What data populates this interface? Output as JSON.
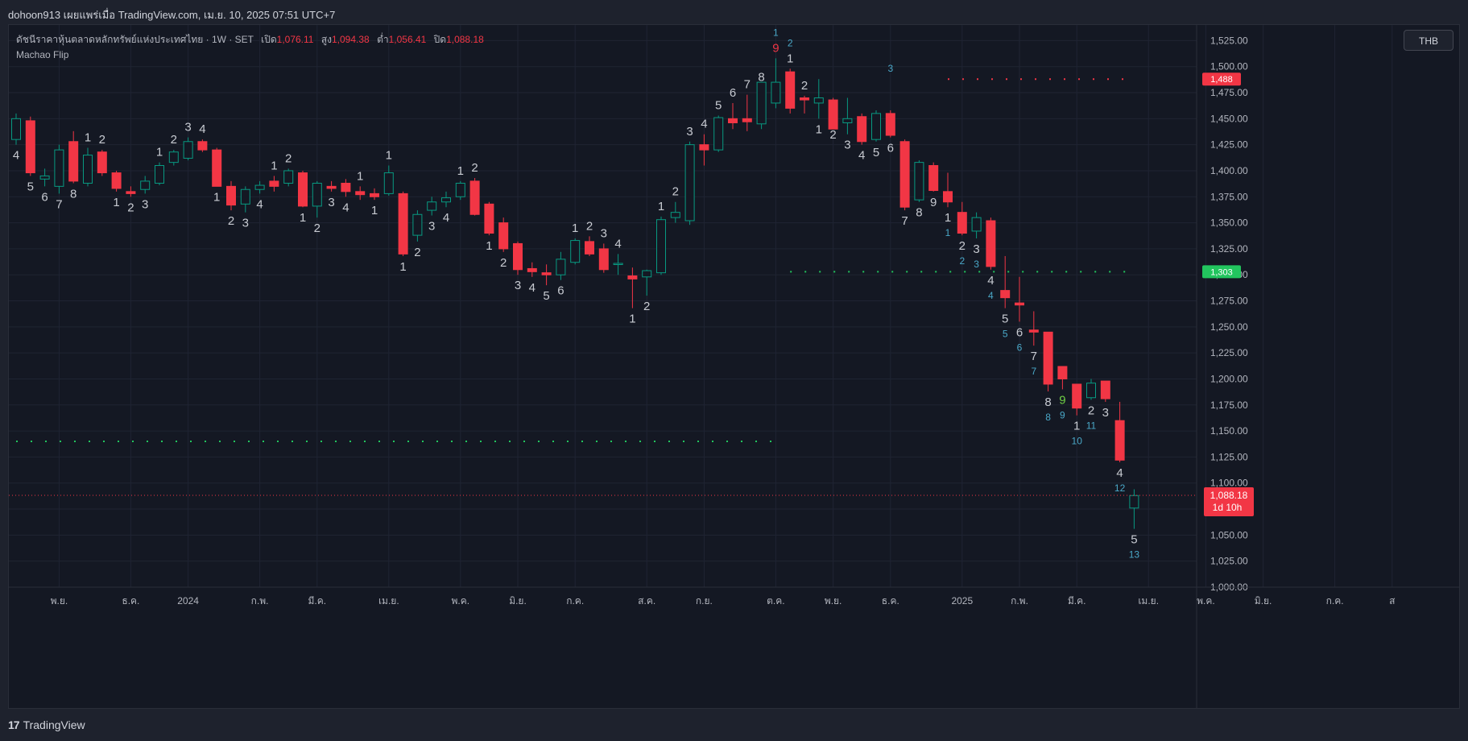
{
  "header": {
    "publisher_line": "dohoon913 เผยแพร่เมื่อ TradingView.com, เม.ย. 10, 2025 07:51 UTC+7"
  },
  "legend": {
    "symbol_desc": "ดัชนีราคาหุ้นตลาดหลักทรัพย์แห่งประเทศไทย · 1W · SET",
    "open_label": "เปิด",
    "open_value": "1,076.11",
    "high_label": "สูง",
    "high_value": "1,094.38",
    "low_label": "ต่ำ",
    "low_value": "1,056.41",
    "close_label": "ปิด",
    "close_value": "1,088.18"
  },
  "indicator": {
    "name": "Machao Flip"
  },
  "currency": "THB",
  "footer": {
    "brand": "TradingView"
  },
  "colors": {
    "up": "#089981",
    "down": "#f23645",
    "grid": "#1f2433",
    "text": "#b2b5be",
    "count_white": "#c8cbd2",
    "count_blue": "#4aa8c8",
    "count_red": "#f23645",
    "count_green": "#6fcf45"
  },
  "chart_data": {
    "type": "candlestick",
    "interval": "1W",
    "ylim": [
      1000,
      1540
    ],
    "y_ticks": [
      "1,525.00",
      "1,500.00",
      "1,475.00",
      "1,450.00",
      "1,425.00",
      "1,400.00",
      "1,375.00",
      "1,350.00",
      "1,325.00",
      "1,300.00",
      "1,275.00",
      "1,250.00",
      "1,225.00",
      "1,200.00",
      "1,175.00",
      "1,150.00",
      "1,125.00",
      "1,100.00",
      "1,075.00",
      "1,050.00",
      "1,025.00",
      "1,000.00"
    ],
    "x_labels": [
      {
        "i": 3,
        "label": "พ.ย."
      },
      {
        "i": 8,
        "label": "ธ.ค."
      },
      {
        "i": 12,
        "label": "2024"
      },
      {
        "i": 17,
        "label": "ก.พ."
      },
      {
        "i": 21,
        "label": "มี.ค."
      },
      {
        "i": 26,
        "label": "เม.ย."
      },
      {
        "i": 31,
        "label": "พ.ค."
      },
      {
        "i": 35,
        "label": "มิ.ย."
      },
      {
        "i": 39,
        "label": "ก.ค."
      },
      {
        "i": 44,
        "label": "ส.ค."
      },
      {
        "i": 48,
        "label": "ก.ย."
      },
      {
        "i": 53,
        "label": "ต.ค."
      },
      {
        "i": 57,
        "label": "พ.ย."
      },
      {
        "i": 61,
        "label": "ธ.ค."
      },
      {
        "i": 66,
        "label": "2025"
      },
      {
        "i": 70,
        "label": "ก.พ."
      },
      {
        "i": 74,
        "label": "มี.ค."
      },
      {
        "i": 79,
        "label": "เม.ย."
      },
      {
        "i": 83,
        "label": "พ.ค."
      },
      {
        "i": 87,
        "label": "มิ.ย."
      },
      {
        "i": 92,
        "label": "ก.ค."
      },
      {
        "i": 96,
        "label": "ส"
      }
    ],
    "candles": [
      [
        1430,
        1455,
        1425,
        1450
      ],
      [
        1448,
        1452,
        1395,
        1398
      ],
      [
        1392,
        1402,
        1385,
        1395
      ],
      [
        1385,
        1425,
        1378,
        1420
      ],
      [
        1428,
        1438,
        1388,
        1390
      ],
      [
        1388,
        1422,
        1385,
        1415
      ],
      [
        1418,
        1420,
        1395,
        1398
      ],
      [
        1398,
        1400,
        1380,
        1383
      ],
      [
        1380,
        1385,
        1375,
        1378
      ],
      [
        1382,
        1395,
        1378,
        1390
      ],
      [
        1388,
        1408,
        1386,
        1405
      ],
      [
        1408,
        1420,
        1405,
        1418
      ],
      [
        1412,
        1432,
        1410,
        1428
      ],
      [
        1428,
        1430,
        1418,
        1420
      ],
      [
        1420,
        1422,
        1385,
        1385
      ],
      [
        1385,
        1390,
        1362,
        1367
      ],
      [
        1368,
        1385,
        1360,
        1382
      ],
      [
        1382,
        1390,
        1378,
        1386
      ],
      [
        1390,
        1395,
        1380,
        1385
      ],
      [
        1388,
        1402,
        1385,
        1400
      ],
      [
        1398,
        1400,
        1365,
        1366
      ],
      [
        1366,
        1390,
        1355,
        1388
      ],
      [
        1385,
        1390,
        1380,
        1383
      ],
      [
        1388,
        1392,
        1375,
        1380
      ],
      [
        1380,
        1385,
        1372,
        1377
      ],
      [
        1378,
        1383,
        1372,
        1375
      ],
      [
        1378,
        1405,
        1376,
        1398
      ],
      [
        1378,
        1380,
        1318,
        1320
      ],
      [
        1338,
        1362,
        1332,
        1358
      ],
      [
        1362,
        1375,
        1357,
        1370
      ],
      [
        1370,
        1380,
        1365,
        1374
      ],
      [
        1375,
        1390,
        1372,
        1388
      ],
      [
        1390,
        1393,
        1357,
        1358
      ],
      [
        1368,
        1370,
        1338,
        1340
      ],
      [
        1350,
        1355,
        1322,
        1325
      ],
      [
        1330,
        1332,
        1300,
        1305
      ],
      [
        1306,
        1312,
        1298,
        1303
      ],
      [
        1302,
        1310,
        1290,
        1300
      ],
      [
        1300,
        1322,
        1295,
        1315
      ],
      [
        1312,
        1335,
        1310,
        1333
      ],
      [
        1332,
        1337,
        1318,
        1320
      ],
      [
        1325,
        1330,
        1302,
        1305
      ],
      [
        1310,
        1320,
        1300,
        1311
      ],
      [
        1299,
        1307,
        1268,
        1296
      ],
      [
        1298,
        1305,
        1280,
        1304
      ],
      [
        1302,
        1356,
        1300,
        1353
      ],
      [
        1355,
        1370,
        1350,
        1360
      ],
      [
        1352,
        1428,
        1348,
        1425
      ],
      [
        1425,
        1435,
        1405,
        1420
      ],
      [
        1420,
        1453,
        1418,
        1451
      ],
      [
        1450,
        1465,
        1440,
        1446
      ],
      [
        1450,
        1473,
        1438,
        1447
      ],
      [
        1445,
        1480,
        1440,
        1485
      ],
      [
        1465,
        1508,
        1460,
        1485
      ],
      [
        1495,
        1498,
        1455,
        1460
      ],
      [
        1470,
        1472,
        1455,
        1468
      ],
      [
        1465,
        1488,
        1450,
        1470
      ],
      [
        1468,
        1470,
        1445,
        1440
      ],
      [
        1446,
        1470,
        1435,
        1450
      ],
      [
        1452,
        1455,
        1425,
        1428
      ],
      [
        1430,
        1458,
        1428,
        1455
      ],
      [
        1455,
        1458,
        1432,
        1434
      ],
      [
        1428,
        1430,
        1362,
        1365
      ],
      [
        1372,
        1410,
        1370,
        1408
      ],
      [
        1405,
        1408,
        1380,
        1381
      ],
      [
        1380,
        1398,
        1365,
        1370
      ],
      [
        1360,
        1370,
        1338,
        1340
      ],
      [
        1342,
        1360,
        1335,
        1355
      ],
      [
        1352,
        1355,
        1305,
        1308
      ],
      [
        1285,
        1318,
        1268,
        1278
      ],
      [
        1273,
        1298,
        1255,
        1271
      ],
      [
        1247,
        1265,
        1232,
        1245
      ],
      [
        1245,
        1245,
        1188,
        1195
      ],
      [
        1212,
        1212,
        1190,
        1200
      ],
      [
        1195,
        1195,
        1165,
        1172
      ],
      [
        1182,
        1200,
        1180,
        1196
      ],
      [
        1198,
        1198,
        1178,
        1181
      ],
      [
        1160,
        1178,
        1120,
        1122
      ],
      [
        1076,
        1094,
        1056,
        1088
      ]
    ],
    "counts": [
      {
        "i": 0,
        "t": "4",
        "where": "below",
        "c": "white",
        "row": 0
      },
      {
        "i": 1,
        "t": "5",
        "where": "below",
        "c": "white",
        "row": 0
      },
      {
        "i": 2,
        "t": "6",
        "where": "below",
        "c": "white",
        "row": 0
      },
      {
        "i": 3,
        "t": "7",
        "where": "below",
        "c": "white",
        "row": 0
      },
      {
        "i": 4,
        "t": "8",
        "where": "below",
        "c": "white",
        "row": 0
      },
      {
        "i": 5,
        "t": "1",
        "where": "above",
        "c": "white",
        "row": 0
      },
      {
        "i": 6,
        "t": "2",
        "where": "above",
        "c": "white",
        "row": 0
      },
      {
        "i": 7,
        "t": "1",
        "where": "below",
        "c": "white",
        "row": 0
      },
      {
        "i": 8,
        "t": "2",
        "where": "below",
        "c": "white",
        "row": 0
      },
      {
        "i": 9,
        "t": "3",
        "where": "below",
        "c": "white",
        "row": 0
      },
      {
        "i": 10,
        "t": "1",
        "where": "above",
        "c": "white",
        "row": 0
      },
      {
        "i": 11,
        "t": "2",
        "where": "above",
        "c": "white",
        "row": 0
      },
      {
        "i": 12,
        "t": "3",
        "where": "above",
        "c": "white",
        "row": 0
      },
      {
        "i": 13,
        "t": "4",
        "where": "above",
        "c": "white",
        "row": 0
      },
      {
        "i": 14,
        "t": "1",
        "where": "below",
        "c": "white",
        "row": 0
      },
      {
        "i": 15,
        "t": "2",
        "where": "below",
        "c": "white",
        "row": 0
      },
      {
        "i": 16,
        "t": "3",
        "where": "below",
        "c": "white",
        "row": 0
      },
      {
        "i": 17,
        "t": "4",
        "where": "below",
        "c": "white",
        "row": 0
      },
      {
        "i": 18,
        "t": "1",
        "where": "above",
        "c": "white",
        "row": 0
      },
      {
        "i": 19,
        "t": "2",
        "where": "above",
        "c": "white",
        "row": 0
      },
      {
        "i": 20,
        "t": "1",
        "where": "below",
        "c": "white",
        "row": 0
      },
      {
        "i": 21,
        "t": "2",
        "where": "below",
        "c": "white",
        "row": 0
      },
      {
        "i": 22,
        "t": "3",
        "where": "below",
        "c": "white",
        "row": 0
      },
      {
        "i": 23,
        "t": "4",
        "where": "below",
        "c": "white",
        "row": 0
      },
      {
        "i": 24,
        "t": "1",
        "where": "above",
        "c": "white",
        "row": 0
      },
      {
        "i": 25,
        "t": "1",
        "where": "below",
        "c": "white",
        "row": 0
      },
      {
        "i": 26,
        "t": "1",
        "where": "above",
        "c": "white",
        "row": 0
      },
      {
        "i": 27,
        "t": "1",
        "where": "below",
        "c": "white",
        "row": 0
      },
      {
        "i": 28,
        "t": "2",
        "where": "below",
        "c": "white",
        "row": 0
      },
      {
        "i": 29,
        "t": "3",
        "where": "below",
        "c": "white",
        "row": 0
      },
      {
        "i": 30,
        "t": "4",
        "where": "below",
        "c": "white",
        "row": 0
      },
      {
        "i": 31,
        "t": "1",
        "where": "above",
        "c": "white",
        "row": 0
      },
      {
        "i": 32,
        "t": "2",
        "where": "above",
        "c": "white",
        "row": 0
      },
      {
        "i": 33,
        "t": "1",
        "where": "below",
        "c": "white",
        "row": 0
      },
      {
        "i": 34,
        "t": "2",
        "where": "below",
        "c": "white",
        "row": 0
      },
      {
        "i": 35,
        "t": "3",
        "where": "below",
        "c": "white",
        "row": 0
      },
      {
        "i": 36,
        "t": "4",
        "where": "below",
        "c": "white",
        "row": 0
      },
      {
        "i": 37,
        "t": "5",
        "where": "below",
        "c": "white",
        "row": 0
      },
      {
        "i": 38,
        "t": "6",
        "where": "below",
        "c": "white",
        "row": 0
      },
      {
        "i": 39,
        "t": "1",
        "where": "above",
        "c": "white",
        "row": 0
      },
      {
        "i": 40,
        "t": "2",
        "where": "above",
        "c": "white",
        "row": 0
      },
      {
        "i": 41,
        "t": "3",
        "where": "above",
        "c": "white",
        "row": 0
      },
      {
        "i": 42,
        "t": "4",
        "where": "above",
        "c": "white",
        "row": 0
      },
      {
        "i": 43,
        "t": "1",
        "where": "below",
        "c": "white",
        "row": 0
      },
      {
        "i": 44,
        "t": "2",
        "where": "below",
        "c": "white",
        "row": 0
      },
      {
        "i": 45,
        "t": "1",
        "where": "above",
        "c": "white",
        "row": 0
      },
      {
        "i": 46,
        "t": "2",
        "where": "above",
        "c": "white",
        "row": 0
      },
      {
        "i": 47,
        "t": "3",
        "where": "above",
        "c": "white",
        "row": 0
      },
      {
        "i": 48,
        "t": "4",
        "where": "above",
        "c": "white",
        "row": 0
      },
      {
        "i": 49,
        "t": "5",
        "where": "above",
        "c": "white",
        "row": 0
      },
      {
        "i": 50,
        "t": "6",
        "where": "above",
        "c": "white",
        "row": 0
      },
      {
        "i": 51,
        "t": "7",
        "where": "above",
        "c": "white",
        "row": 0
      },
      {
        "i": 52,
        "t": "8",
        "where": "above",
        "c": "white",
        "row": 0
      },
      {
        "i": 53,
        "t": "9",
        "where": "above",
        "c": "red",
        "row": 0
      },
      {
        "i": 53,
        "t": "1",
        "where": "above",
        "c": "blue",
        "row": 1
      },
      {
        "i": 54,
        "t": "1",
        "where": "above",
        "c": "white",
        "row": 0
      },
      {
        "i": 54,
        "t": "2",
        "where": "above",
        "c": "blue",
        "row": 1
      },
      {
        "i": 55,
        "t": "2",
        "where": "above",
        "c": "white",
        "row": 0
      },
      {
        "i": 56,
        "t": "1",
        "where": "below",
        "c": "white",
        "row": 0
      },
      {
        "i": 57,
        "t": "2",
        "where": "below",
        "c": "white",
        "row": 0
      },
      {
        "i": 58,
        "t": "3",
        "where": "below",
        "c": "white",
        "row": 0
      },
      {
        "i": 59,
        "t": "4",
        "where": "below",
        "c": "white",
        "row": 0
      },
      {
        "i": 60,
        "t": "5",
        "where": "below",
        "c": "white",
        "row": 0
      },
      {
        "i": 61,
        "t": "6",
        "where": "below",
        "c": "white",
        "row": 0
      },
      {
        "i": 62,
        "t": "7",
        "where": "below",
        "c": "white",
        "row": 0
      },
      {
        "i": 63,
        "t": "8",
        "where": "below",
        "c": "white",
        "row": 0
      },
      {
        "i": 64,
        "t": "9",
        "where": "below",
        "c": "white",
        "row": 0
      },
      {
        "i": 65,
        "t": "1",
        "where": "below",
        "c": "white",
        "row": 0
      },
      {
        "i": 65,
        "t": "1",
        "where": "below",
        "c": "blue",
        "row": 1
      },
      {
        "i": 66,
        "t": "2",
        "where": "below",
        "c": "white",
        "row": 0
      },
      {
        "i": 66,
        "t": "2",
        "where": "below",
        "c": "blue",
        "row": 1
      },
      {
        "i": 67,
        "t": "3",
        "where": "below",
        "c": "white",
        "row": 0
      },
      {
        "i": 67,
        "t": "3",
        "where": "below",
        "c": "blue",
        "row": 1
      },
      {
        "i": 68,
        "t": "4",
        "where": "below",
        "c": "white",
        "row": 0
      },
      {
        "i": 68,
        "t": "4",
        "where": "below",
        "c": "blue",
        "row": 1
      },
      {
        "i": 69,
        "t": "5",
        "where": "below",
        "c": "white",
        "row": 0
      },
      {
        "i": 69,
        "t": "5",
        "where": "below",
        "c": "blue",
        "row": 1
      },
      {
        "i": 70,
        "t": "6",
        "where": "below",
        "c": "white",
        "row": 0
      },
      {
        "i": 70,
        "t": "6",
        "where": "below",
        "c": "blue",
        "row": 1
      },
      {
        "i": 71,
        "t": "7",
        "where": "below",
        "c": "white",
        "row": 0
      },
      {
        "i": 71,
        "t": "7",
        "where": "below",
        "c": "blue",
        "row": 1
      },
      {
        "i": 72,
        "t": "8",
        "where": "below",
        "c": "white",
        "row": 0
      },
      {
        "i": 72,
        "t": "8",
        "where": "below",
        "c": "blue",
        "row": 1
      },
      {
        "i": 73,
        "t": "9",
        "where": "below",
        "c": "green",
        "row": 0
      },
      {
        "i": 73,
        "t": "9",
        "where": "below",
        "c": "blue",
        "row": 1
      },
      {
        "i": 74,
        "t": "1",
        "where": "below",
        "c": "white",
        "row": 0
      },
      {
        "i": 74,
        "t": "10",
        "where": "below",
        "c": "blue",
        "row": 1
      },
      {
        "i": 75,
        "t": "2",
        "where": "below",
        "c": "white",
        "row": 0
      },
      {
        "i": 75,
        "t": "11",
        "where": "below",
        "c": "blue",
        "row": 1
      },
      {
        "i": 76,
        "t": "3",
        "where": "below",
        "c": "white",
        "row": 0
      },
      {
        "i": 77,
        "t": "4",
        "where": "below",
        "c": "white",
        "row": 0
      },
      {
        "i": 77,
        "t": "12",
        "where": "below",
        "c": "blue",
        "row": 1
      },
      {
        "i": 78,
        "t": "5",
        "where": "below",
        "c": "white",
        "row": 0
      },
      {
        "i": 78,
        "t": "13",
        "where": "below",
        "c": "blue",
        "row": 1
      },
      {
        "i": 61,
        "t": "3",
        "where": "above",
        "c": "blue",
        "row": 2
      }
    ],
    "levels": [
      {
        "value": 1488,
        "color": "#f23645",
        "from": 65,
        "to": 78,
        "label": "1,488"
      },
      {
        "value": 1303,
        "color": "#22c55e",
        "from": 54,
        "to": 78,
        "label": "1,303"
      },
      {
        "value": 1140,
        "color": "#22c55e",
        "from": 0,
        "to": 53,
        "label": ""
      }
    ],
    "last_price": {
      "value": 1088.18,
      "label": "1,088.18",
      "countdown": "1d 10h"
    }
  }
}
